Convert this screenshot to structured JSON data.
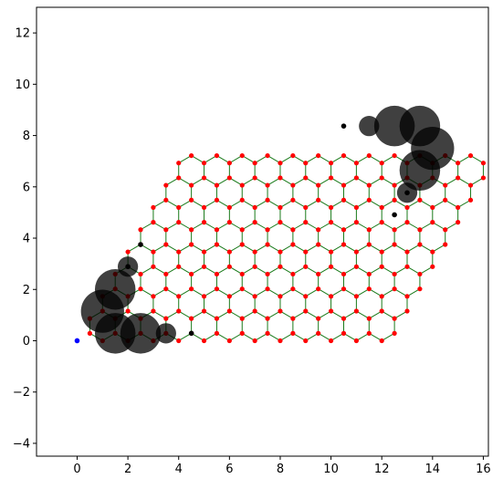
{
  "chart_data": {
    "type": "scatter",
    "title": "",
    "xlabel": "",
    "ylabel": "",
    "xlim": [
      -1.6,
      16.2
    ],
    "ylim": [
      -4.5,
      13.0
    ],
    "xticks": [
      0,
      2,
      4,
      6,
      8,
      10,
      12,
      14,
      16
    ],
    "yticks": [
      -4,
      -2,
      0,
      2,
      4,
      6,
      8,
      10,
      12
    ],
    "grid": false,
    "legend": "none",
    "lattice": {
      "description_type": "honeycomb",
      "cols": 12,
      "rows": 8,
      "bond_length": 0.5774,
      "a1": [
        1,
        0
      ],
      "a2": [
        0.5,
        0.866
      ],
      "origin": [
        0.5,
        0.2887
      ],
      "atom_color": "#ff0000",
      "bond_color": "#1a7a1a"
    },
    "special_points": [
      {
        "x": 0,
        "y": 0,
        "color": "#0000ff"
      }
    ],
    "black_atoms": [
      [
        4.5,
        0.29
      ],
      [
        2.5,
        3.75
      ],
      [
        10.5,
        8.37
      ],
      [
        12.5,
        4.91
      ],
      [
        2.0,
        2.89
      ],
      [
        13.0,
        5.77
      ]
    ],
    "circles": [
      {
        "x": 1.0,
        "y": 1.15,
        "r": 0.85
      },
      {
        "x": 1.5,
        "y": 2.0,
        "r": 0.8
      },
      {
        "x": 1.5,
        "y": 0.29,
        "r": 0.8
      },
      {
        "x": 2.5,
        "y": 0.29,
        "r": 0.8
      },
      {
        "x": 2.0,
        "y": 2.89,
        "r": 0.4
      },
      {
        "x": 3.5,
        "y": 0.29,
        "r": 0.4
      },
      {
        "x": 11.5,
        "y": 8.37,
        "r": 0.4
      },
      {
        "x": 12.5,
        "y": 8.37,
        "r": 0.8
      },
      {
        "x": 13.5,
        "y": 8.37,
        "r": 0.8
      },
      {
        "x": 14.0,
        "y": 7.5,
        "r": 0.85
      },
      {
        "x": 13.5,
        "y": 6.64,
        "r": 0.8
      },
      {
        "x": 13.0,
        "y": 5.77,
        "r": 0.4
      }
    ],
    "circle_color": "#000000",
    "circle_opacity": 0.75
  }
}
